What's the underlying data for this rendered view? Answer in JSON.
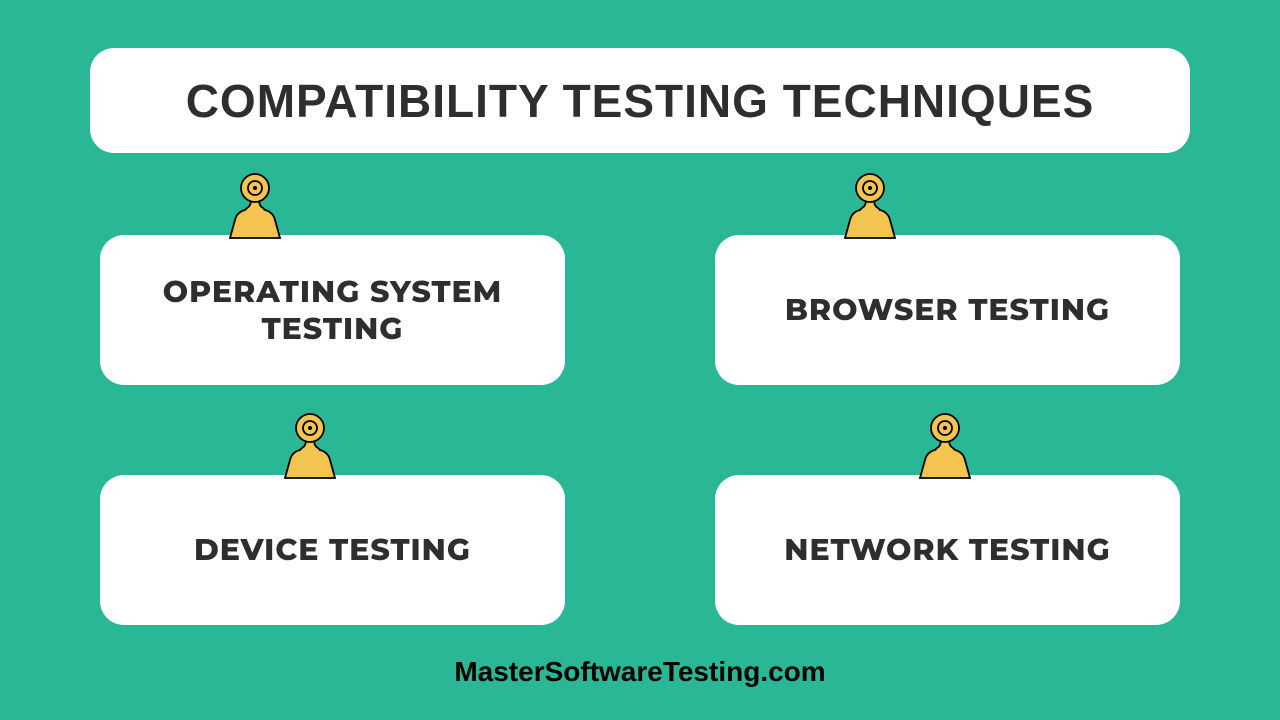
{
  "background_color": "#2ab796",
  "title": {
    "text": "COMPATIBILITY TESTING TECHNIQUES",
    "fontsize": 46,
    "color": "#2e2e2e",
    "box_bg": "#ffffff",
    "box_radius": 24
  },
  "cards": [
    {
      "label": "OPERATING SYSTEM\nTESTING",
      "position": "top-left"
    },
    {
      "label": "BROWSER TESTING",
      "position": "top-right"
    },
    {
      "label": "DEVICE TESTING",
      "position": "bottom-left"
    },
    {
      "label": "NETWORK TESTING",
      "position": "bottom-right"
    }
  ],
  "card_style": {
    "bg": "#ffffff",
    "radius": 24,
    "text_color": "#2e2e2e",
    "fontsize": 30,
    "fontweight": 800
  },
  "clip": {
    "fill": "#f3c44f",
    "stroke": "#000000",
    "stroke_width": 1.5
  },
  "footer": {
    "text": "MasterSoftwareTesting.com",
    "fontsize": 28,
    "color": "#000000"
  }
}
